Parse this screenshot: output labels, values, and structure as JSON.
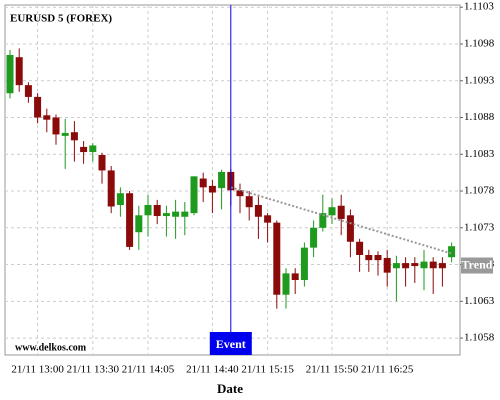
{
  "chart_data": {
    "type": "candlestick",
    "title": "EURUSD 5 (FOREX)",
    "watermark": "www.delkos.com",
    "x_label": "Date",
    "categories": [
      null,
      null,
      null,
      "21/11 13:00",
      null,
      null,
      null,
      null,
      null,
      "21/11 13:30",
      null,
      null,
      null,
      null,
      null,
      "21/11 14:05",
      null,
      null,
      null,
      null,
      null,
      null,
      "21/11 14:40",
      null,
      null,
      null,
      null,
      null,
      "21/11 15:15",
      null,
      null,
      null,
      null,
      null,
      null,
      "21/11 15:50",
      null,
      null,
      null,
      null,
      null,
      "21/11 16:25",
      null,
      null,
      null,
      null,
      null,
      null,
      null
    ],
    "open": [
      1.10913,
      1.10962,
      1.10924,
      1.10908,
      1.10883,
      1.1088,
      1.10855,
      1.1086,
      1.1084,
      1.10833,
      1.10829,
      1.10808,
      1.10761,
      1.10777,
      1.10724,
      1.10747,
      1.10761,
      1.10746,
      1.10745,
      1.10745,
      1.1075,
      1.10797,
      1.10787,
      1.10784,
      1.10806,
      1.10781,
      1.10773,
      1.10761,
      1.10747,
      1.10737,
      1.10639,
      1.10668,
      1.10659,
      1.10703,
      1.1073,
      1.10747,
      1.1076,
      1.10747,
      1.10711,
      1.10693,
      1.10693,
      1.10689,
      1.10675,
      1.10682,
      1.10682,
      1.10675,
      1.10684,
      1.10682,
      1.1069
    ],
    "high": [
      1.10972,
      1.10974,
      1.10928,
      1.10913,
      1.10892,
      1.10884,
      1.10878,
      1.10875,
      1.10848,
      1.10845,
      1.10832,
      1.10814,
      1.10785,
      1.1078,
      1.1076,
      1.10775,
      1.10768,
      1.1076,
      1.10768,
      1.10765,
      1.108,
      1.10805,
      1.10795,
      1.10809,
      1.1081,
      1.1079,
      1.1078,
      1.10775,
      1.1075,
      1.1074,
      1.10675,
      1.10675,
      1.1071,
      1.1074,
      1.10775,
      1.1077,
      1.10775,
      1.10755,
      1.10715,
      1.107,
      1.10698,
      1.107,
      1.10692,
      1.1069,
      1.1069,
      1.107,
      1.1069,
      1.1069,
      1.1071
    ],
    "low": [
      1.10906,
      1.10915,
      1.109,
      1.10872,
      1.1086,
      1.10843,
      1.1081,
      1.1082,
      1.10817,
      1.1082,
      1.1079,
      1.1075,
      1.10745,
      1.107,
      1.107,
      1.10718,
      1.10735,
      1.10718,
      1.10715,
      1.1072,
      1.10747,
      1.10765,
      1.1075,
      1.10755,
      1.1076,
      1.1075,
      1.1074,
      1.10715,
      1.1071,
      1.1062,
      1.1062,
      1.1064,
      1.1065,
      1.1069,
      1.10725,
      1.10735,
      1.1072,
      1.1069,
      1.1067,
      1.1067,
      1.10665,
      1.1065,
      1.1063,
      1.1065,
      1.10655,
      1.10645,
      1.1064,
      1.1065,
      1.10683
    ],
    "close": [
      1.10965,
      1.10924,
      1.10908,
      1.1088,
      1.10877,
      1.10857,
      1.10859,
      1.10849,
      1.10833,
      1.10842,
      1.10808,
      1.10759,
      1.10777,
      1.10704,
      1.10747,
      1.10761,
      1.10746,
      1.1075,
      1.10752,
      1.10752,
      1.108,
      1.10785,
      1.10778,
      1.10806,
      1.10781,
      1.10773,
      1.10758,
      1.10745,
      1.10737,
      1.10639,
      1.10668,
      1.10659,
      1.10703,
      1.1073,
      1.1075,
      1.10758,
      1.10742,
      1.10711,
      1.10693,
      1.10686,
      1.10686,
      1.10669,
      1.10682,
      1.10675,
      1.10678,
      1.10684,
      1.10675,
      1.10675,
      1.10705
    ],
    "up_color": "#1e9a1e",
    "down_color": "#8b0a0a",
    "ylim": [
      1.10557,
      1.11033
    ],
    "yticks": [
      1.1058,
      1.1063,
      1.1068,
      1.1073,
      1.1078,
      1.1083,
      1.1088,
      1.1093,
      1.1098,
      1.1103
    ],
    "grid": true,
    "event": {
      "label": "Event",
      "index": 24,
      "color": "#0000ee"
    },
    "trend": {
      "label": "Trend",
      "start_index": 24,
      "start_value": 1.10785,
      "end_index": 48,
      "end_value": 1.10695,
      "color": "#999999"
    }
  }
}
